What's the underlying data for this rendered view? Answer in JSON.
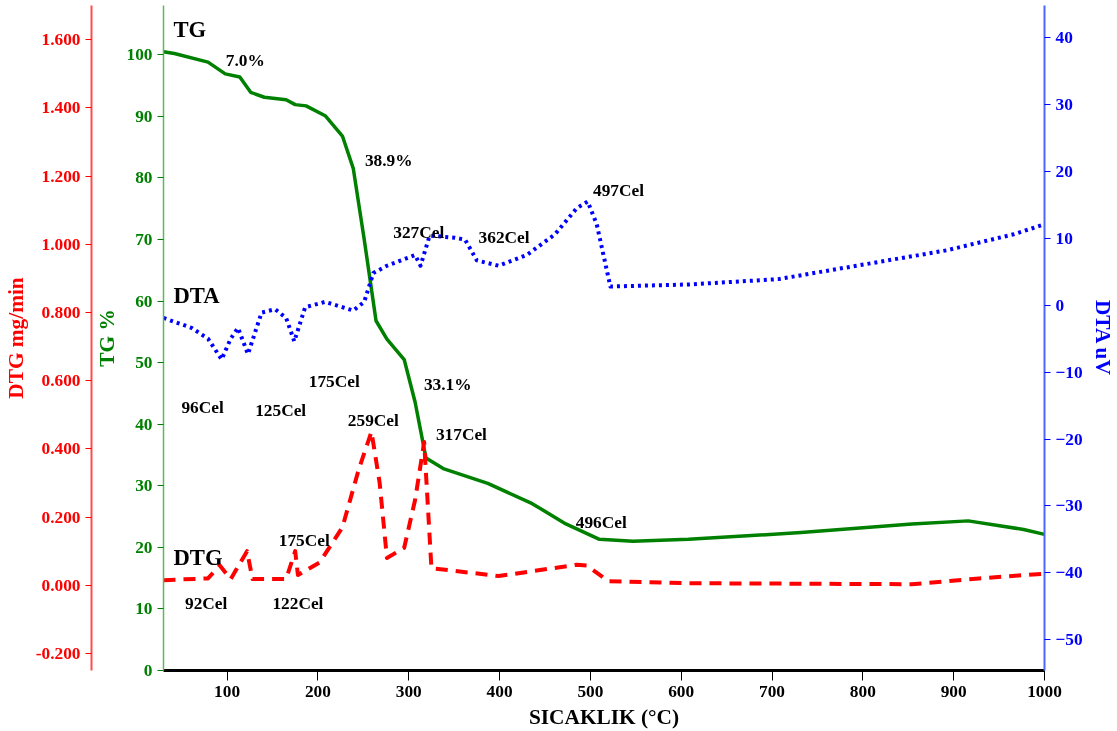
{
  "chart_data": {
    "type": "line",
    "xlabel": "SICAKLIK (°C)",
    "ylabel": "TG %",
    "y2label": "DTA uV",
    "y3label": "DTG mg/min",
    "xlim": [
      30,
      1000
    ],
    "xticks": [
      100,
      200,
      300,
      400,
      500,
      600,
      700,
      800,
      900,
      1000
    ],
    "ylim": [
      0,
      108
    ],
    "yticks": [
      0,
      10,
      20,
      30,
      40,
      50,
      60,
      70,
      80,
      90,
      100
    ],
    "y2lim": [
      -54.6,
      44.8
    ],
    "y2ticks": [
      -50,
      -40,
      -30,
      -20,
      -10,
      0,
      10,
      20,
      30,
      40
    ],
    "y3lim": [
      -0.25,
      1.7
    ],
    "y3ticks": [
      {
        "value": -0.2,
        "label": "-0.200"
      },
      {
        "value": 0,
        "label": "0.000"
      },
      {
        "value": 0.2,
        "label": "0.200"
      },
      {
        "value": 0.4,
        "label": "0.400"
      },
      {
        "value": 0.6,
        "label": "0.600"
      },
      {
        "value": 0.8,
        "label": "0.800"
      },
      {
        "value": 1.0,
        "label": "1.000"
      },
      {
        "value": 1.2,
        "label": "1.200"
      },
      {
        "value": 1.4,
        "label": "1.400"
      },
      {
        "value": 1.6,
        "label": "1.600"
      }
    ],
    "grid": false,
    "series": [
      {
        "name": "TG",
        "color": "#008000",
        "line_style": "solid",
        "axis": "y",
        "x": [
          30,
          42,
          79,
          98,
          114,
          126,
          141,
          165,
          175,
          187,
          208,
          227,
          239,
          251,
          264,
          276,
          295,
          307,
          319,
          338,
          387,
          436,
          473,
          510,
          547,
          608,
          732,
          854,
          916,
          977,
          1000
        ],
        "values": [
          100.5,
          100.2,
          98.8,
          96.9,
          96.4,
          93.9,
          93.1,
          92.7,
          91.9,
          91.7,
          90.1,
          86.8,
          81.5,
          70,
          56.8,
          53.8,
          50.5,
          43.6,
          34.5,
          32.8,
          30.4,
          27.1,
          23.8,
          21.3,
          21,
          21.3,
          22.4,
          23.8,
          24.3,
          22.9,
          22.1
        ]
      },
      {
        "name": "DTA",
        "color": "#0000ff",
        "line_style": "dotted",
        "axis": "y2",
        "x": [
          30,
          61,
          79,
          94,
          104,
          112,
          123,
          138,
          153,
          165,
          174,
          186,
          208,
          239,
          251,
          261,
          276,
          307,
          313,
          323,
          350,
          362,
          375,
          399,
          430,
          461,
          485,
          497,
          507,
          522,
          608,
          707,
          793,
          892,
          966,
          1000
        ],
        "values": [
          -1.9,
          -3.4,
          -5.0,
          -8.1,
          -5.0,
          -3.4,
          -7.3,
          -1.1,
          -0.6,
          -1.9,
          -5.4,
          -0.3,
          0.5,
          -0.8,
          0.5,
          4.8,
          5.9,
          7.5,
          5.9,
          10.4,
          10.1,
          9.8,
          6.7,
          5.9,
          7.5,
          10.6,
          14.5,
          15.5,
          12.1,
          2.8,
          3.1,
          3.9,
          5.9,
          8.2,
          10.6,
          12.1
        ]
      },
      {
        "name": "DTG",
        "color": "#ff0000",
        "line_style": "dashed",
        "axis": "y3",
        "x": [
          30,
          79,
          92,
          104,
          122,
          128,
          165,
          175,
          178,
          202,
          227,
          245,
          259,
          268,
          276,
          295,
          307,
          317,
          325,
          399,
          485,
          496,
          520,
          608,
          854,
          928,
          1000
        ],
        "values": [
          0.015,
          0.02,
          0.058,
          0.018,
          0.1,
          0.018,
          0.018,
          0.1,
          0.03,
          0.067,
          0.17,
          0.34,
          0.45,
          0.3,
          0.08,
          0.11,
          0.25,
          0.42,
          0.05,
          0.027,
          0.06,
          0.058,
          0.012,
          0.006,
          0.003,
          0.02,
          0.034
        ]
      }
    ],
    "annotations": [
      "7.0%",
      "38.9%",
      "33.1%",
      "497Cel",
      "327Cel",
      "362Cel",
      "96Cel",
      "125Cel",
      "175Cel",
      "259Cel",
      "317Cel",
      "175Cel",
      "92Cel",
      "122Cel",
      "496Cel"
    ]
  }
}
